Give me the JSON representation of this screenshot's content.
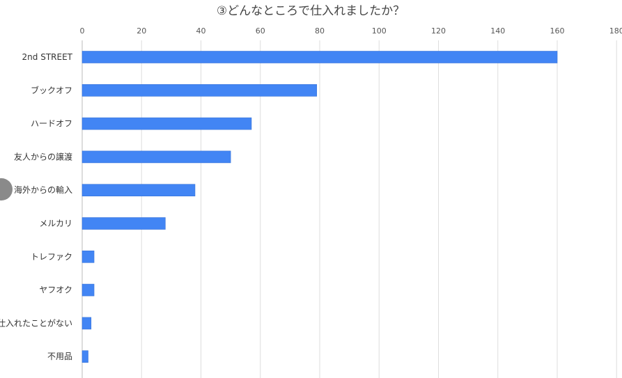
{
  "chart_data": {
    "type": "bar",
    "orientation": "horizontal",
    "title": "③どんなところで仕入れましたか？",
    "xlabel": "",
    "ylabel": "",
    "xlim": [
      0,
      180
    ],
    "x_ticks": [
      "0",
      "20",
      "40",
      "60",
      "80",
      "100",
      "120",
      "140",
      "160",
      "180"
    ],
    "grid": true,
    "bar_color": "#4285f4",
    "categories": [
      "2nd STREET",
      "ブックオフ",
      "ハードオフ",
      "友人からの譲渡",
      "海外からの輸入",
      "メルカリ",
      "トレファク",
      "ヤフオク",
      "仕入れたことがない",
      "不用品"
    ],
    "values": [
      160,
      79,
      57,
      50,
      38,
      28,
      4,
      4,
      3,
      2
    ]
  }
}
